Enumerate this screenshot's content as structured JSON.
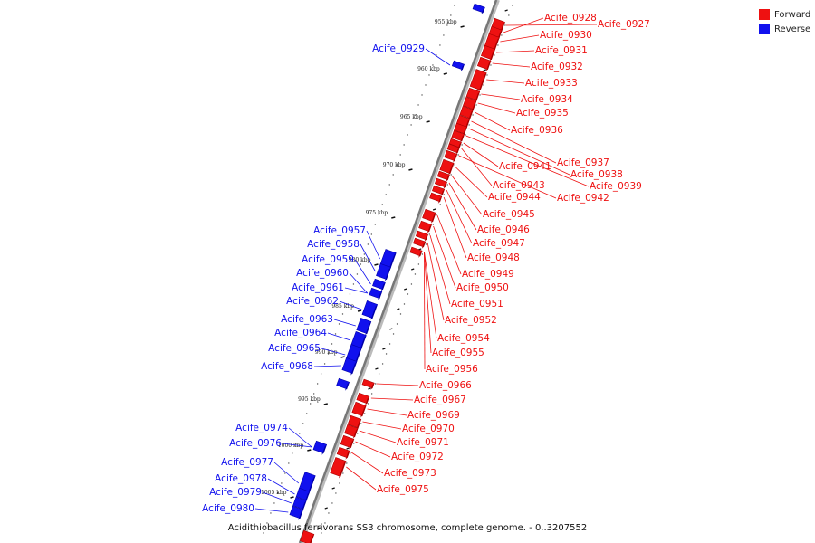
{
  "legend": {
    "forward_label": "Forward",
    "reverse_label": "Reverse",
    "forward_color": "#ee1111",
    "reverse_color": "#1111ee"
  },
  "caption": "Acidithiobacillus ferrivorans SS3 chromosome, complete genome. - 0..3207552",
  "axis": {
    "ticks": [
      "955 kbp",
      "960 kbp",
      "965 kbp",
      "970 kbp",
      "975 kbp",
      "980 kbp",
      "985 kbp",
      "990 kbp",
      "995 kbp",
      "1000 kbp",
      "1005 kbp"
    ]
  },
  "genes": {
    "forward": [
      "Acife_0927",
      "Acife_0928",
      "Acife_0930",
      "Acife_0931",
      "Acife_0932",
      "Acife_0933",
      "Acife_0934",
      "Acife_0935",
      "Acife_0936",
      "Acife_0937",
      "Acife_0938",
      "Acife_0939",
      "Acife_0941",
      "Acife_0943",
      "Acife_0942",
      "Acife_0944",
      "Acife_0945",
      "Acife_0946",
      "Acife_0947",
      "Acife_0948",
      "Acife_0949",
      "Acife_0950",
      "Acife_0951",
      "Acife_0952",
      "Acife_0954",
      "Acife_0955",
      "Acife_0956",
      "Acife_0966",
      "Acife_0967",
      "Acife_0969",
      "Acife_0970",
      "Acife_0971",
      "Acife_0972",
      "Acife_0973",
      "Acife_0975"
    ],
    "reverse": [
      "Acife_0929",
      "Acife_0957",
      "Acife_0958",
      "Acife_0959",
      "Acife_0960",
      "Acife_0961",
      "Acife_0962",
      "Acife_0963",
      "Acife_0964",
      "Acife_0965",
      "Acife_0968",
      "Acife_0974",
      "Acife_0976",
      "Acife_0977",
      "Acife_0978",
      "Acife_0979",
      "Acife_0980"
    ]
  }
}
